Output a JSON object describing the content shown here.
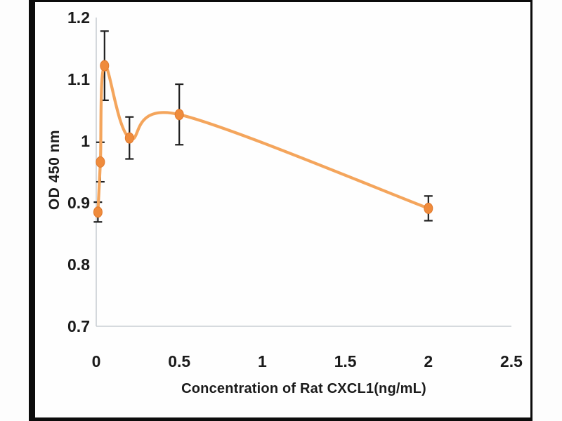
{
  "figure": {
    "kind": "elisa-dose-response-line-chart",
    "colors": {
      "line": "#F4A55C",
      "marker_fill": "#EF8B3C",
      "marker_stroke": "#E0792C",
      "error_bar": "#1f1f1f",
      "axis_line": "#c9ced3",
      "text": "#1b1b1b",
      "frame": "#0c0c0c",
      "background": "#fefefe"
    }
  },
  "chart_data": {
    "type": "line",
    "title": "",
    "xlabel": "Concentration of Rat CXCL1(ng/mL)",
    "ylabel": "OD 450 nm",
    "xlim": [
      0,
      2.5
    ],
    "ylim": [
      0.7,
      1.2
    ],
    "x_ticks": [
      0,
      0.5,
      1,
      1.5,
      2,
      2.5
    ],
    "x_tick_labels": [
      "0",
      "0.5",
      "1",
      "1.5",
      "2",
      "2.5"
    ],
    "y_ticks": [
      0.7,
      0.8,
      0.9,
      1,
      1.1,
      1.2
    ],
    "y_tick_labels": [
      "0.7",
      "0.8",
      "0.9",
      "1",
      "1.1",
      "1.2"
    ],
    "grid": false,
    "legend": null,
    "line_style": "smooth",
    "error_bars": true,
    "series": [
      {
        "name": "Rat CXCL1",
        "points": [
          {
            "x": 0.01,
            "y": 0.885,
            "err": 0.016
          },
          {
            "x": 0.025,
            "y": 0.966,
            "err": 0.032
          },
          {
            "x": 0.05,
            "y": 1.122,
            "err": 0.056
          },
          {
            "x": 0.2,
            "y": 1.005,
            "err": 0.034
          },
          {
            "x": 0.5,
            "y": 1.043,
            "err": 0.049
          },
          {
            "x": 2.0,
            "y": 0.891,
            "err": 0.02
          }
        ]
      }
    ]
  }
}
